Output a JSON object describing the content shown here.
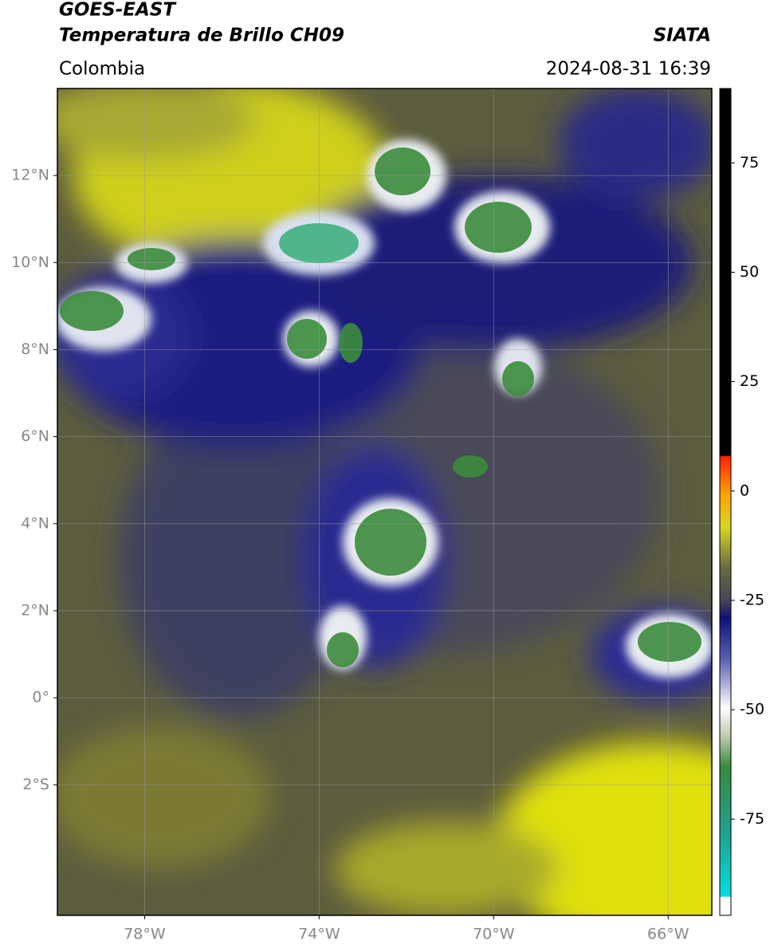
{
  "header": {
    "title": "GOES-EAST",
    "subtitle": "Temperatura de Brillo CH09",
    "region": "Colombia",
    "source": "SIATA",
    "datetime": "2024-08-31 16:39"
  },
  "map": {
    "lonlim": [
      -80,
      -65
    ],
    "latlim": [
      -5,
      14
    ],
    "lonticks": [
      {
        "value": -78,
        "label": "78°W"
      },
      {
        "value": -74,
        "label": "74°W"
      },
      {
        "value": -70,
        "label": "70°W"
      },
      {
        "value": -66,
        "label": "66°W"
      }
    ],
    "latticks": [
      {
        "value": 12,
        "label": "12°N"
      },
      {
        "value": 10,
        "label": "10°N"
      },
      {
        "value": 8,
        "label": "8°N"
      },
      {
        "value": 6,
        "label": "6°N"
      },
      {
        "value": 4,
        "label": "4°N"
      },
      {
        "value": 2,
        "label": "2°N"
      },
      {
        "value": 0,
        "label": "0°"
      },
      {
        "value": -2,
        "label": "2°S"
      }
    ],
    "grid": true
  },
  "colorbar": {
    "lim": [
      -97,
      92
    ],
    "ticks": [
      75,
      50,
      25,
      0,
      -25,
      -50,
      -75
    ]
  }
}
